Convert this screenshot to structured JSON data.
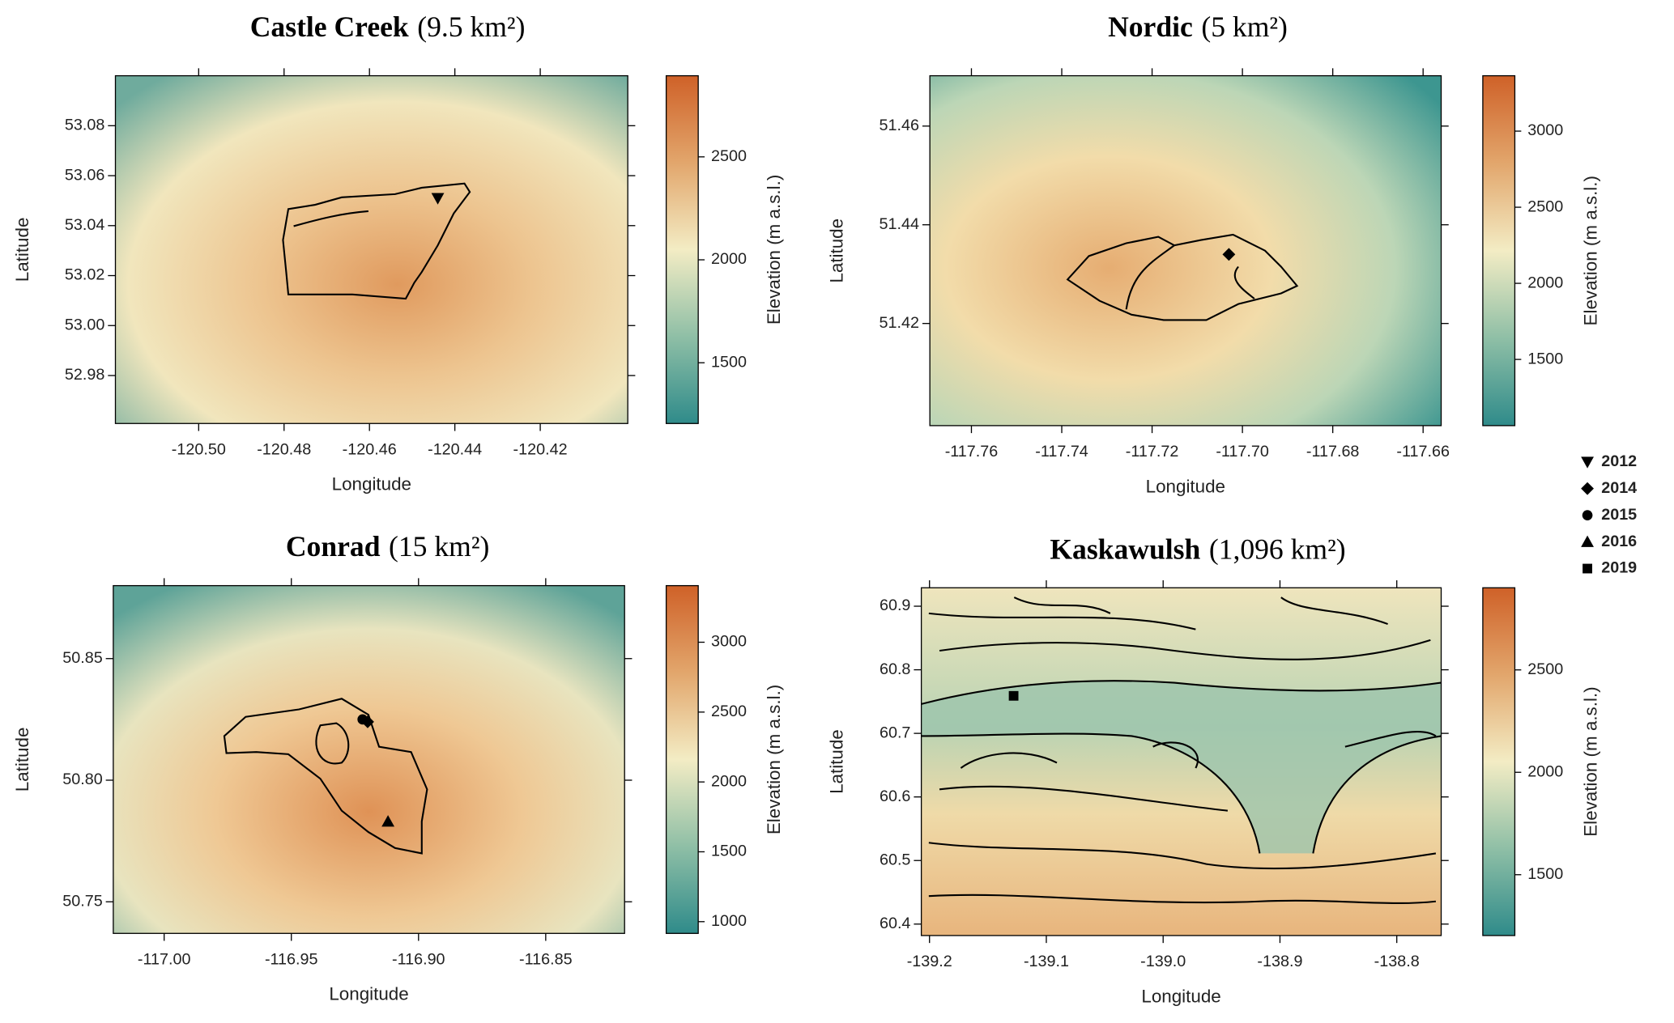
{
  "chart_data": [
    {
      "type": "map",
      "title": "Castle Creek",
      "title_area": "(9.5 km²)",
      "xlabel": "Longitude",
      "ylabel": "Latitude",
      "xlim": [
        -120.5195,
        -120.3995
      ],
      "ylim": [
        52.9608,
        53.1
      ],
      "xticks": [
        {
          "value": -120.5,
          "label": "-120.50"
        },
        -120.48,
        -120.46,
        -120.44,
        -120.42
      ],
      "yticks": [
        52.98,
        {
          "value": 53.0,
          "label": "53.00"
        },
        53.02,
        53.04,
        53.06,
        53.08
      ],
      "colorbar": {
        "label": "Elevation (m a.s.l.)",
        "lim": [
          1205,
          2894
        ],
        "ticks": [
          1500,
          2000,
          2500
        ]
      },
      "points": [
        {
          "x": -120.444,
          "y": 53.051,
          "symbol": "triangle-down"
        }
      ]
    },
    {
      "type": "map",
      "title": "Nordic",
      "title_area": "(5 km²)",
      "xlabel": "Longitude",
      "ylabel": "Latitude",
      "xlim": [
        -117.7692,
        -117.656
      ],
      "ylim": [
        51.3993,
        51.4702
      ],
      "xticks": [
        -117.76,
        -117.74,
        -117.72,
        {
          "value": -117.7,
          "label": "-117.70"
        },
        -117.68,
        -117.66
      ],
      "yticks": [
        51.42,
        51.44,
        51.46
      ],
      "colorbar": {
        "label": "Elevation (m a.s.l.)",
        "lim": [
          1065,
          3364
        ],
        "ticks": [
          1500,
          2000,
          2500,
          3000
        ]
      },
      "points": [
        {
          "x": -117.703,
          "y": 51.434,
          "symbol": "diamond"
        }
      ]
    },
    {
      "type": "map",
      "title": "Conrad",
      "title_area": "(15 km²)",
      "xlabel": "Longitude",
      "ylabel": "Latitude",
      "xlim": [
        -117.02,
        -116.819
      ],
      "ylim": [
        50.737,
        50.88
      ],
      "xticks": [
        {
          "value": -117.0,
          "label": "-117.00"
        },
        -116.95,
        {
          "value": -116.9,
          "label": "-116.90"
        },
        -116.85
      ],
      "yticks": [
        50.75,
        {
          "value": 50.8,
          "label": "50.80"
        },
        50.85
      ],
      "colorbar": {
        "label": "Elevation (m a.s.l.)",
        "lim": [
          916,
          3405
        ],
        "ticks": [
          1000,
          1500,
          2000,
          2500,
          3000
        ]
      },
      "points": [
        {
          "x": -116.922,
          "y": 50.825,
          "symbol": "circle"
        },
        {
          "x": -116.92,
          "y": 50.824,
          "symbol": "diamond"
        },
        {
          "x": -116.912,
          "y": 50.783,
          "symbol": "triangle-up"
        }
      ]
    },
    {
      "type": "map",
      "title": "Kaskawulsh",
      "title_area": "(1,096 km²)",
      "xlabel": "Longitude",
      "ylabel": "Latitude",
      "xlim": [
        -139.207,
        -138.762
      ],
      "ylim": [
        60.382,
        60.929
      ],
      "xticks": [
        -139.2,
        -139.1,
        {
          "value": -139.0,
          "label": "-139.0"
        },
        -138.9,
        -138.8
      ],
      "yticks": [
        60.4,
        60.5,
        60.6,
        60.7,
        60.8,
        60.9
      ],
      "colorbar": {
        "label": "Elevation (m a.s.l.)",
        "lim": [
          1203,
          2901
        ],
        "ticks": [
          1500,
          2000,
          2500
        ]
      },
      "points": [
        {
          "x": -139.128,
          "y": 60.759,
          "symbol": "square"
        }
      ]
    }
  ],
  "legend": [
    {
      "name": "2012",
      "symbol": "triangle-down"
    },
    {
      "name": "2014",
      "symbol": "diamond"
    },
    {
      "name": "2015",
      "symbol": "circle"
    },
    {
      "name": "2016",
      "symbol": "triangle-up"
    },
    {
      "name": "2019",
      "symbol": "square"
    }
  ]
}
